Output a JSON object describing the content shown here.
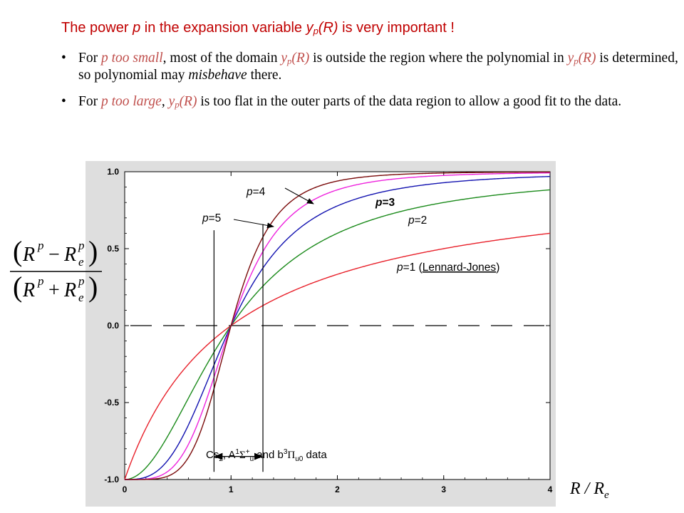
{
  "header": {
    "title_pre": "The power ",
    "title_p": "p",
    "title_mid": " in the expansion variable ",
    "title_y": "y",
    "title_sub": "p",
    "title_arg": "(R)",
    "title_post": " is very important !"
  },
  "bullets": [
    {
      "pre": "For ",
      "red": "p too small",
      "mid1": ", most of the domain ",
      "y": "y",
      "ysub": "p",
      "yarg": "(R)",
      "mid2": " is outside the region where the polynomial in ",
      "y2": "y",
      "y2sub": "p",
      "y2arg": "(R)",
      "mid3": " is determined, so polynomial may ",
      "ital": "misbehave",
      "post": " there."
    },
    {
      "pre": "For ",
      "red": "p too large",
      "mid1": ", ",
      "y": "y",
      "ysub": "p",
      "yarg": "(R)",
      "post": " is too flat in the outer parts of the data region to allow a good fit to the data."
    }
  ],
  "chart_data": {
    "type": "line",
    "xlabel": "R / R",
    "xlabel_sub": "e",
    "ylabel_formula": "(R^p − R_e^p)/(R^p + R_e^p)",
    "xlim": [
      0,
      4
    ],
    "ylim": [
      -1.0,
      1.0
    ],
    "x_ticks": [
      "0",
      "1",
      "2",
      "3",
      "4"
    ],
    "y_ticks": [
      "1.0",
      "0.5",
      "0.0",
      "-0.5",
      "-1.0"
    ],
    "series": [
      {
        "name": "p=1 (Lennard-Jones)",
        "p": 1,
        "color": "#e8202a",
        "x": [
          0,
          0.25,
          0.5,
          0.75,
          1,
          1.5,
          2,
          2.5,
          3,
          3.5,
          4
        ],
        "y": [
          -1,
          -0.6,
          -0.333,
          -0.143,
          0,
          0.2,
          0.333,
          0.429,
          0.5,
          0.556,
          0.6
        ]
      },
      {
        "name": "p=2",
        "p": 2,
        "color": "#1a8a1a",
        "x": [
          0,
          0.25,
          0.5,
          0.75,
          1,
          1.5,
          2,
          2.5,
          3,
          3.5,
          4
        ],
        "y": [
          -1,
          -0.882,
          -0.6,
          -0.28,
          0,
          0.385,
          0.6,
          0.724,
          0.8,
          0.849,
          0.882
        ]
      },
      {
        "name": "p=3",
        "p": 3,
        "color": "#1212b0",
        "x": [
          0,
          0.25,
          0.5,
          0.75,
          1,
          1.5,
          2,
          2.5,
          3,
          3.5,
          4
        ],
        "y": [
          -1,
          -0.969,
          -0.778,
          -0.406,
          0,
          0.543,
          0.778,
          0.879,
          0.929,
          0.954,
          0.969
        ]
      },
      {
        "name": "p=4",
        "p": 4,
        "color": "#ee22dd",
        "x": [
          0,
          0.25,
          0.5,
          0.75,
          1,
          1.5,
          2,
          2.5,
          3,
          3.5,
          4
        ],
        "y": [
          -1,
          -0.992,
          -0.882,
          -0.52,
          0,
          0.67,
          0.882,
          0.951,
          0.976,
          0.987,
          0.992
        ]
      },
      {
        "name": "p=5",
        "p": 5,
        "color": "#7a0a0a",
        "x": [
          0,
          0.25,
          0.5,
          0.75,
          1,
          1.5,
          2,
          2.5,
          3,
          3.5,
          4
        ],
        "y": [
          -1,
          -0.998,
          -0.939,
          -0.617,
          0,
          0.767,
          0.939,
          0.979,
          0.992,
          0.996,
          0.998
        ]
      }
    ],
    "labels": {
      "p1": "p=1 (Lennard-Jones)",
      "p1_pre": "p",
      "p1_mid": "=1 (",
      "p1_link": "Lennard-Jones",
      "p1_post": ")",
      "p2_p": "p",
      "p2_rest": "=2",
      "p3_p": "p",
      "p3_rest": "=3",
      "p4_p": "p",
      "p4_rest": "=4",
      "p5_p": "p",
      "p5_rest": "=5"
    },
    "data_range": {
      "x_min": 0.84,
      "x_max": 1.3,
      "caption_pre": "Cs",
      "caption_sub": "2",
      "caption_mid": ", A",
      "caption_sup1": "1",
      "caption_sigma": "Σ",
      "caption_sup2": "+",
      "caption_sub2": "u",
      "caption_and": " and b",
      "caption_sup3": "3",
      "caption_pi": "Π",
      "caption_sub3": "u0",
      "caption_post": " data"
    },
    "zero_line": "dashed",
    "grid": false
  }
}
